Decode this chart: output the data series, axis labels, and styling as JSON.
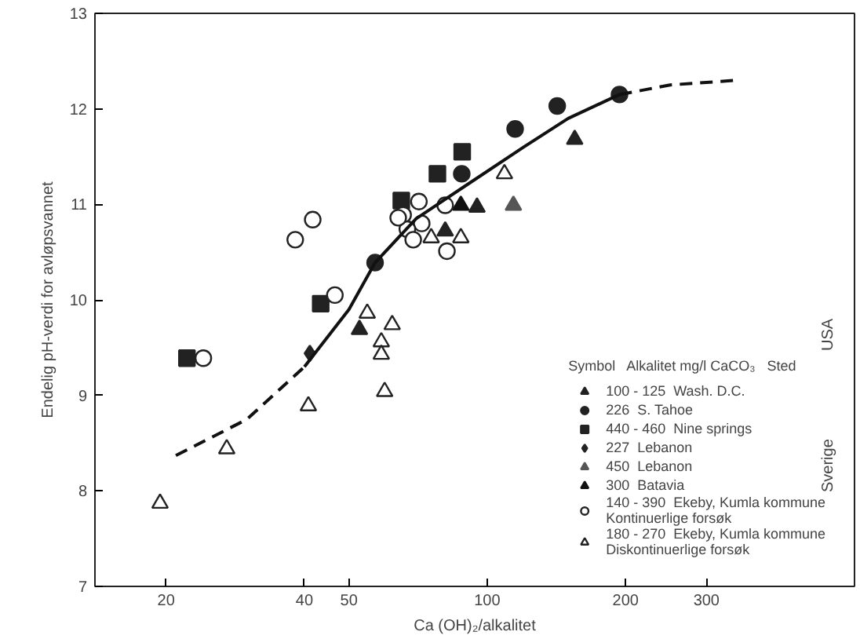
{
  "chart_data": {
    "type": "scatter",
    "xlabel": "Ca (OH)₂/alkalitet",
    "ylabel": "Endelig pH-verdi for avløpsvannet",
    "legend_title": "Symbol   Alkalitet mg/l CaCO₃   Sted",
    "log": "x",
    "xlim": [
      14,
      630
    ],
    "ylim": [
      7,
      13
    ],
    "xticks": [
      20,
      40,
      50,
      100,
      200,
      300
    ],
    "yticks": [
      7,
      8,
      9,
      10,
      11,
      12,
      13
    ],
    "grid": false,
    "legend": "bottom right",
    "annotations": [
      "USA",
      "Sverige"
    ],
    "series": [
      {
        "name": "100 - 125  Wash. D.C.",
        "color": "#222222",
        "marker": "triangle",
        "x": [
          155,
          95,
          81,
          52.7
        ],
        "values": [
          11.68,
          10.97,
          10.72,
          9.69
        ]
      },
      {
        "name": "226  S. Tahoe",
        "color": "#222222",
        "marker": "circle",
        "x": [
          194,
          142,
          115,
          88,
          57
        ],
        "values": [
          12.15,
          12.03,
          11.79,
          11.32,
          10.39
        ]
      },
      {
        "name": "440 - 460  Nine springs",
        "color": "#222222",
        "marker": "square",
        "x": [
          88.2,
          77.9,
          65,
          43.4,
          22.2
        ],
        "values": [
          11.55,
          11.32,
          11.04,
          9.96,
          9.39
        ]
      },
      {
        "name": "227  Lebanon",
        "color": "#222222",
        "marker": "diamond",
        "x": [
          41.1
        ],
        "values": [
          9.44
        ]
      },
      {
        "name": "450  Lebanon",
        "color": "#555555",
        "marker": "triangle",
        "x": [
          114
        ],
        "values": [
          10.99
        ]
      },
      {
        "name": "300  Batavia",
        "color": "#111111",
        "marker": "triangle",
        "x": [
          87.6
        ],
        "values": [
          10.99
        ]
      },
      {
        "name": "140 - 390  Ekeby, Kumla kommune\nKontinuerlige forsøk",
        "color": "#ffffff",
        "marker": "circle",
        "x": [
          24.1,
          46.6,
          41.7,
          38.2,
          71,
          65.6,
          72,
          67,
          69,
          81,
          81.7,
          64
        ],
        "values": [
          9.39,
          10.05,
          10.84,
          10.63,
          11.03,
          10.89,
          10.8,
          10.74,
          10.63,
          10.99,
          10.51,
          10.86
        ]
      },
      {
        "name": "180 - 270  Ekeby, Kumla kommune\nDiskontinuerlige forsøk",
        "color": "#ffffff",
        "marker": "triangle",
        "x": [
          19.4,
          27.1,
          40.8,
          54.8,
          62.1,
          58.8,
          58.8,
          59.8,
          75.5,
          87.6,
          109
        ],
        "values": [
          7.87,
          8.44,
          8.89,
          9.86,
          9.74,
          9.56,
          9.43,
          9.04,
          10.65,
          10.65,
          11.32
        ]
      },
      {
        "type": "line",
        "color": "#111111",
        "line_style": "dashed",
        "x": [
          21,
          30,
          40
        ],
        "values": [
          8.37,
          8.75,
          9.3
        ]
      },
      {
        "type": "line",
        "color": "#111111",
        "line_style": "solid",
        "x": [
          40,
          50,
          57,
          70,
          90,
          120,
          150,
          194
        ],
        "values": [
          9.3,
          9.9,
          10.39,
          10.85,
          11.2,
          11.6,
          11.9,
          12.15
        ]
      },
      {
        "type": "line",
        "color": "#111111",
        "line_style": "dashed",
        "x": [
          194,
          250,
          350
        ],
        "values": [
          12.15,
          12.25,
          12.3
        ]
      }
    ]
  }
}
